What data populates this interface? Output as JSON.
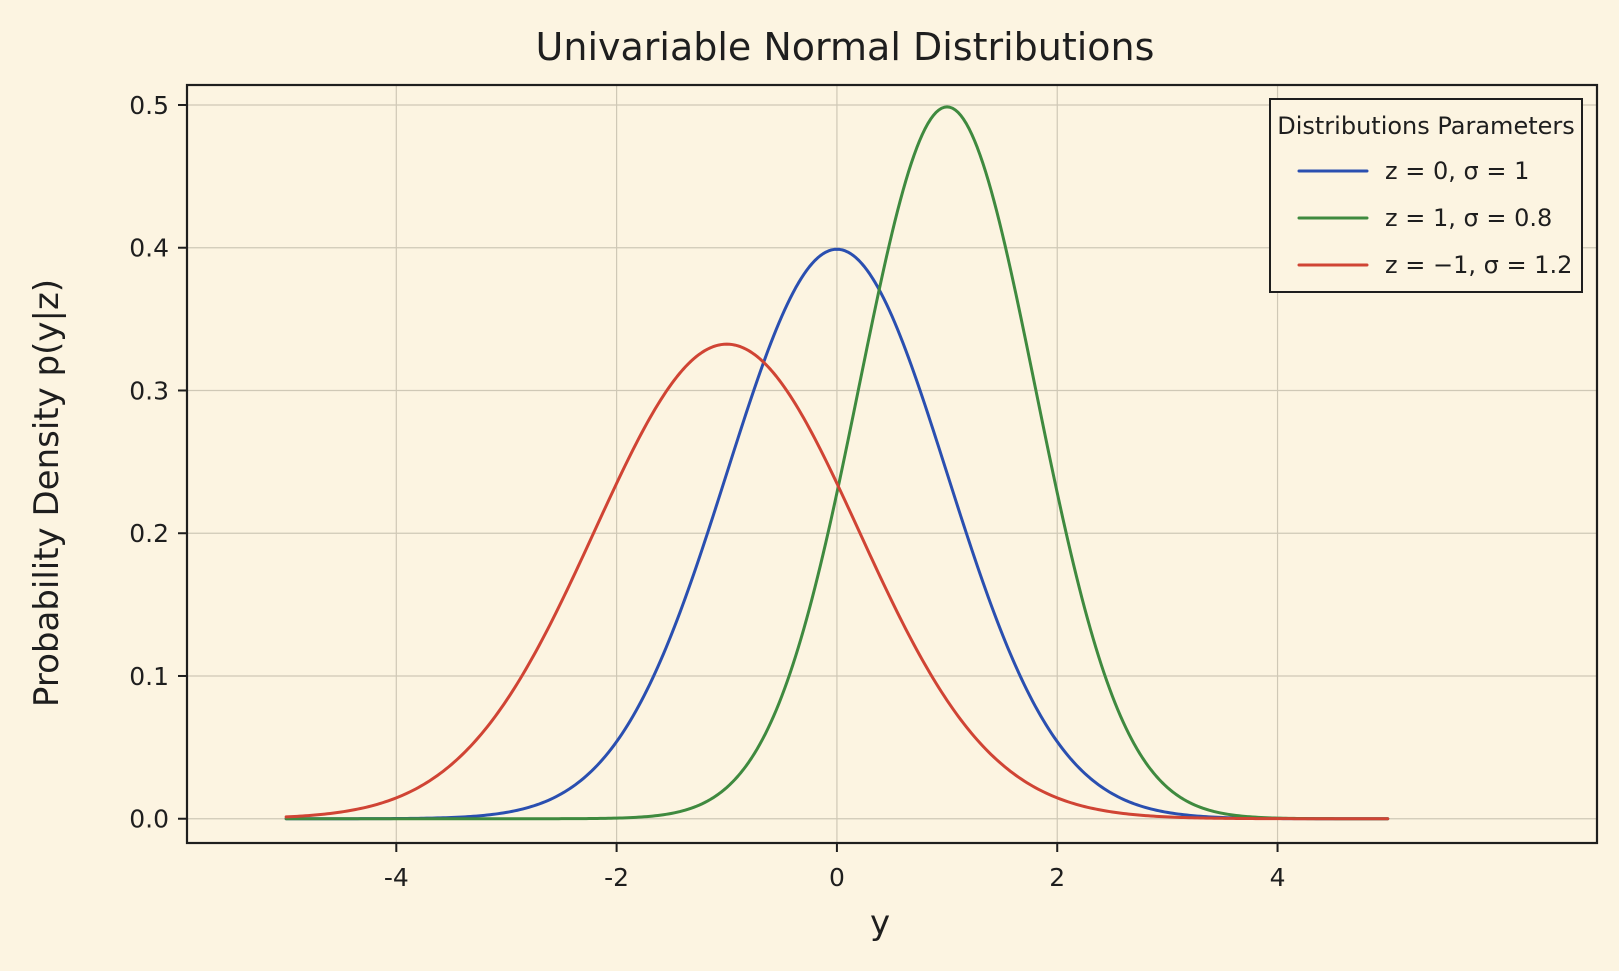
{
  "chart_data": {
    "type": "line",
    "title": "Univariable Normal Distributions",
    "xlabel": "y",
    "ylabel": "Probability Density p(y|z)",
    "xlim": [
      -5.9,
      6.9
    ],
    "ylim": [
      -0.017,
      0.514
    ],
    "x_domain": [
      -5,
      5
    ],
    "xticks": [
      -4,
      -2,
      0,
      2,
      4
    ],
    "xtick_labels": [
      "-4",
      "-2",
      "0",
      "2",
      "4"
    ],
    "yticks": [
      0.0,
      0.1,
      0.2,
      0.3,
      0.4,
      0.5
    ],
    "ytick_labels": [
      "0.0",
      "0.1",
      "0.2",
      "0.3",
      "0.4",
      "0.5"
    ],
    "grid": true,
    "legend": {
      "title": "Distributions Parameters",
      "placement": "top-right"
    },
    "series": [
      {
        "name": "z = 0,  σ = 1",
        "mu": 0,
        "sigma": 1,
        "color": "#2a4fb0",
        "peak": 0.399
      },
      {
        "name": "z = 1,  σ = 0.8",
        "mu": 1,
        "sigma": 0.8,
        "color": "#3f8a3f",
        "peak": 0.499
      },
      {
        "name": "z = −1,  σ = 1.2",
        "mu": -1,
        "sigma": 1.2,
        "color": "#d04434",
        "peak": 0.332
      }
    ]
  }
}
